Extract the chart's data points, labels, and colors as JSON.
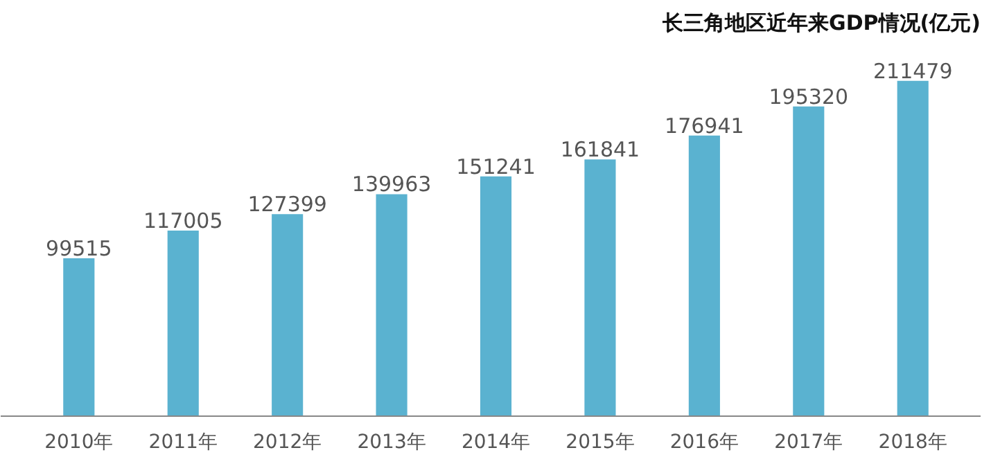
{
  "chart_data": {
    "type": "bar",
    "title": "长三角地区近年来GDP情况(亿元)",
    "categories": [
      "2010年",
      "2011年",
      "2012年",
      "2013年",
      "2014年",
      "2015年",
      "2016年",
      "2017年",
      "2018年"
    ],
    "values": [
      99515,
      117005,
      127399,
      139963,
      151241,
      161841,
      176941,
      195320,
      211479
    ],
    "color": "#5ab2d0",
    "data_labels": true
  }
}
